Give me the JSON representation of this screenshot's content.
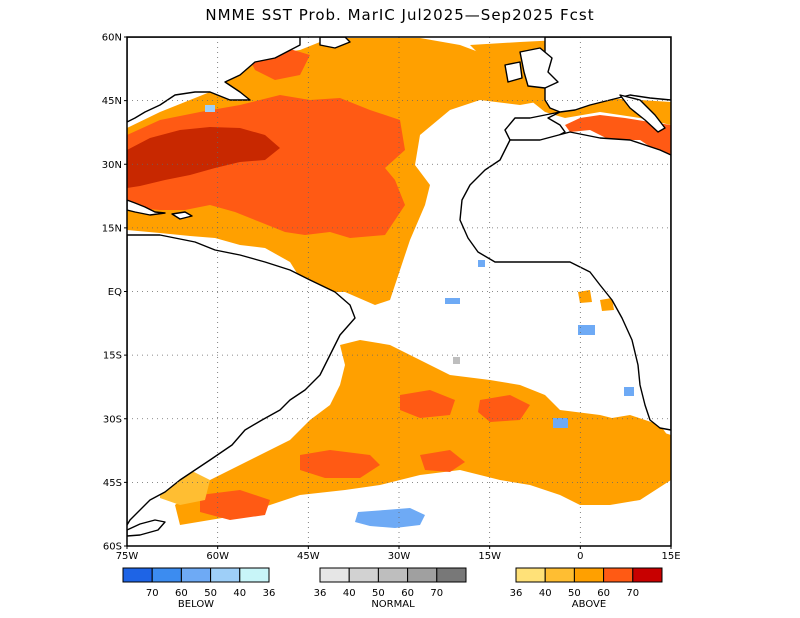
{
  "title": "NMME SST Prob. MarIC   Jul2025—Sep2025 Fcst",
  "map": {
    "lon_range": [
      -75,
      15
    ],
    "lat_range": [
      -60,
      60
    ],
    "lat_labels": [
      "60N",
      "45N",
      "30N",
      "15N",
      "EQ",
      "15S",
      "30S",
      "45S",
      "60S"
    ],
    "lon_labels": [
      "75W",
      "60W",
      "45W",
      "30W",
      "15W",
      "0",
      "15E"
    ],
    "grid": "dotted"
  },
  "legend": {
    "below": {
      "label": "BELOW",
      "colors": [
        "#1e64e6",
        "#3c8cf0",
        "#6eaaf5",
        "#9ecff8",
        "#c8f5f8"
      ],
      "ticks": [
        "70",
        "60",
        "50",
        "40",
        "36"
      ]
    },
    "normal": {
      "label": "NORMAL",
      "colors": [
        "#e6e6e6",
        "#d2d2d2",
        "#bebebe",
        "#a0a0a0",
        "#787878"
      ],
      "ticks": [
        "36",
        "40",
        "50",
        "60",
        "70"
      ]
    },
    "above": {
      "label": "ABOVE",
      "colors": [
        "#ffe178",
        "#ffbe32",
        "#ffa000",
        "#ff5a14",
        "#c80000"
      ],
      "ticks": [
        "36",
        "40",
        "50",
        "60",
        "70"
      ]
    }
  }
}
